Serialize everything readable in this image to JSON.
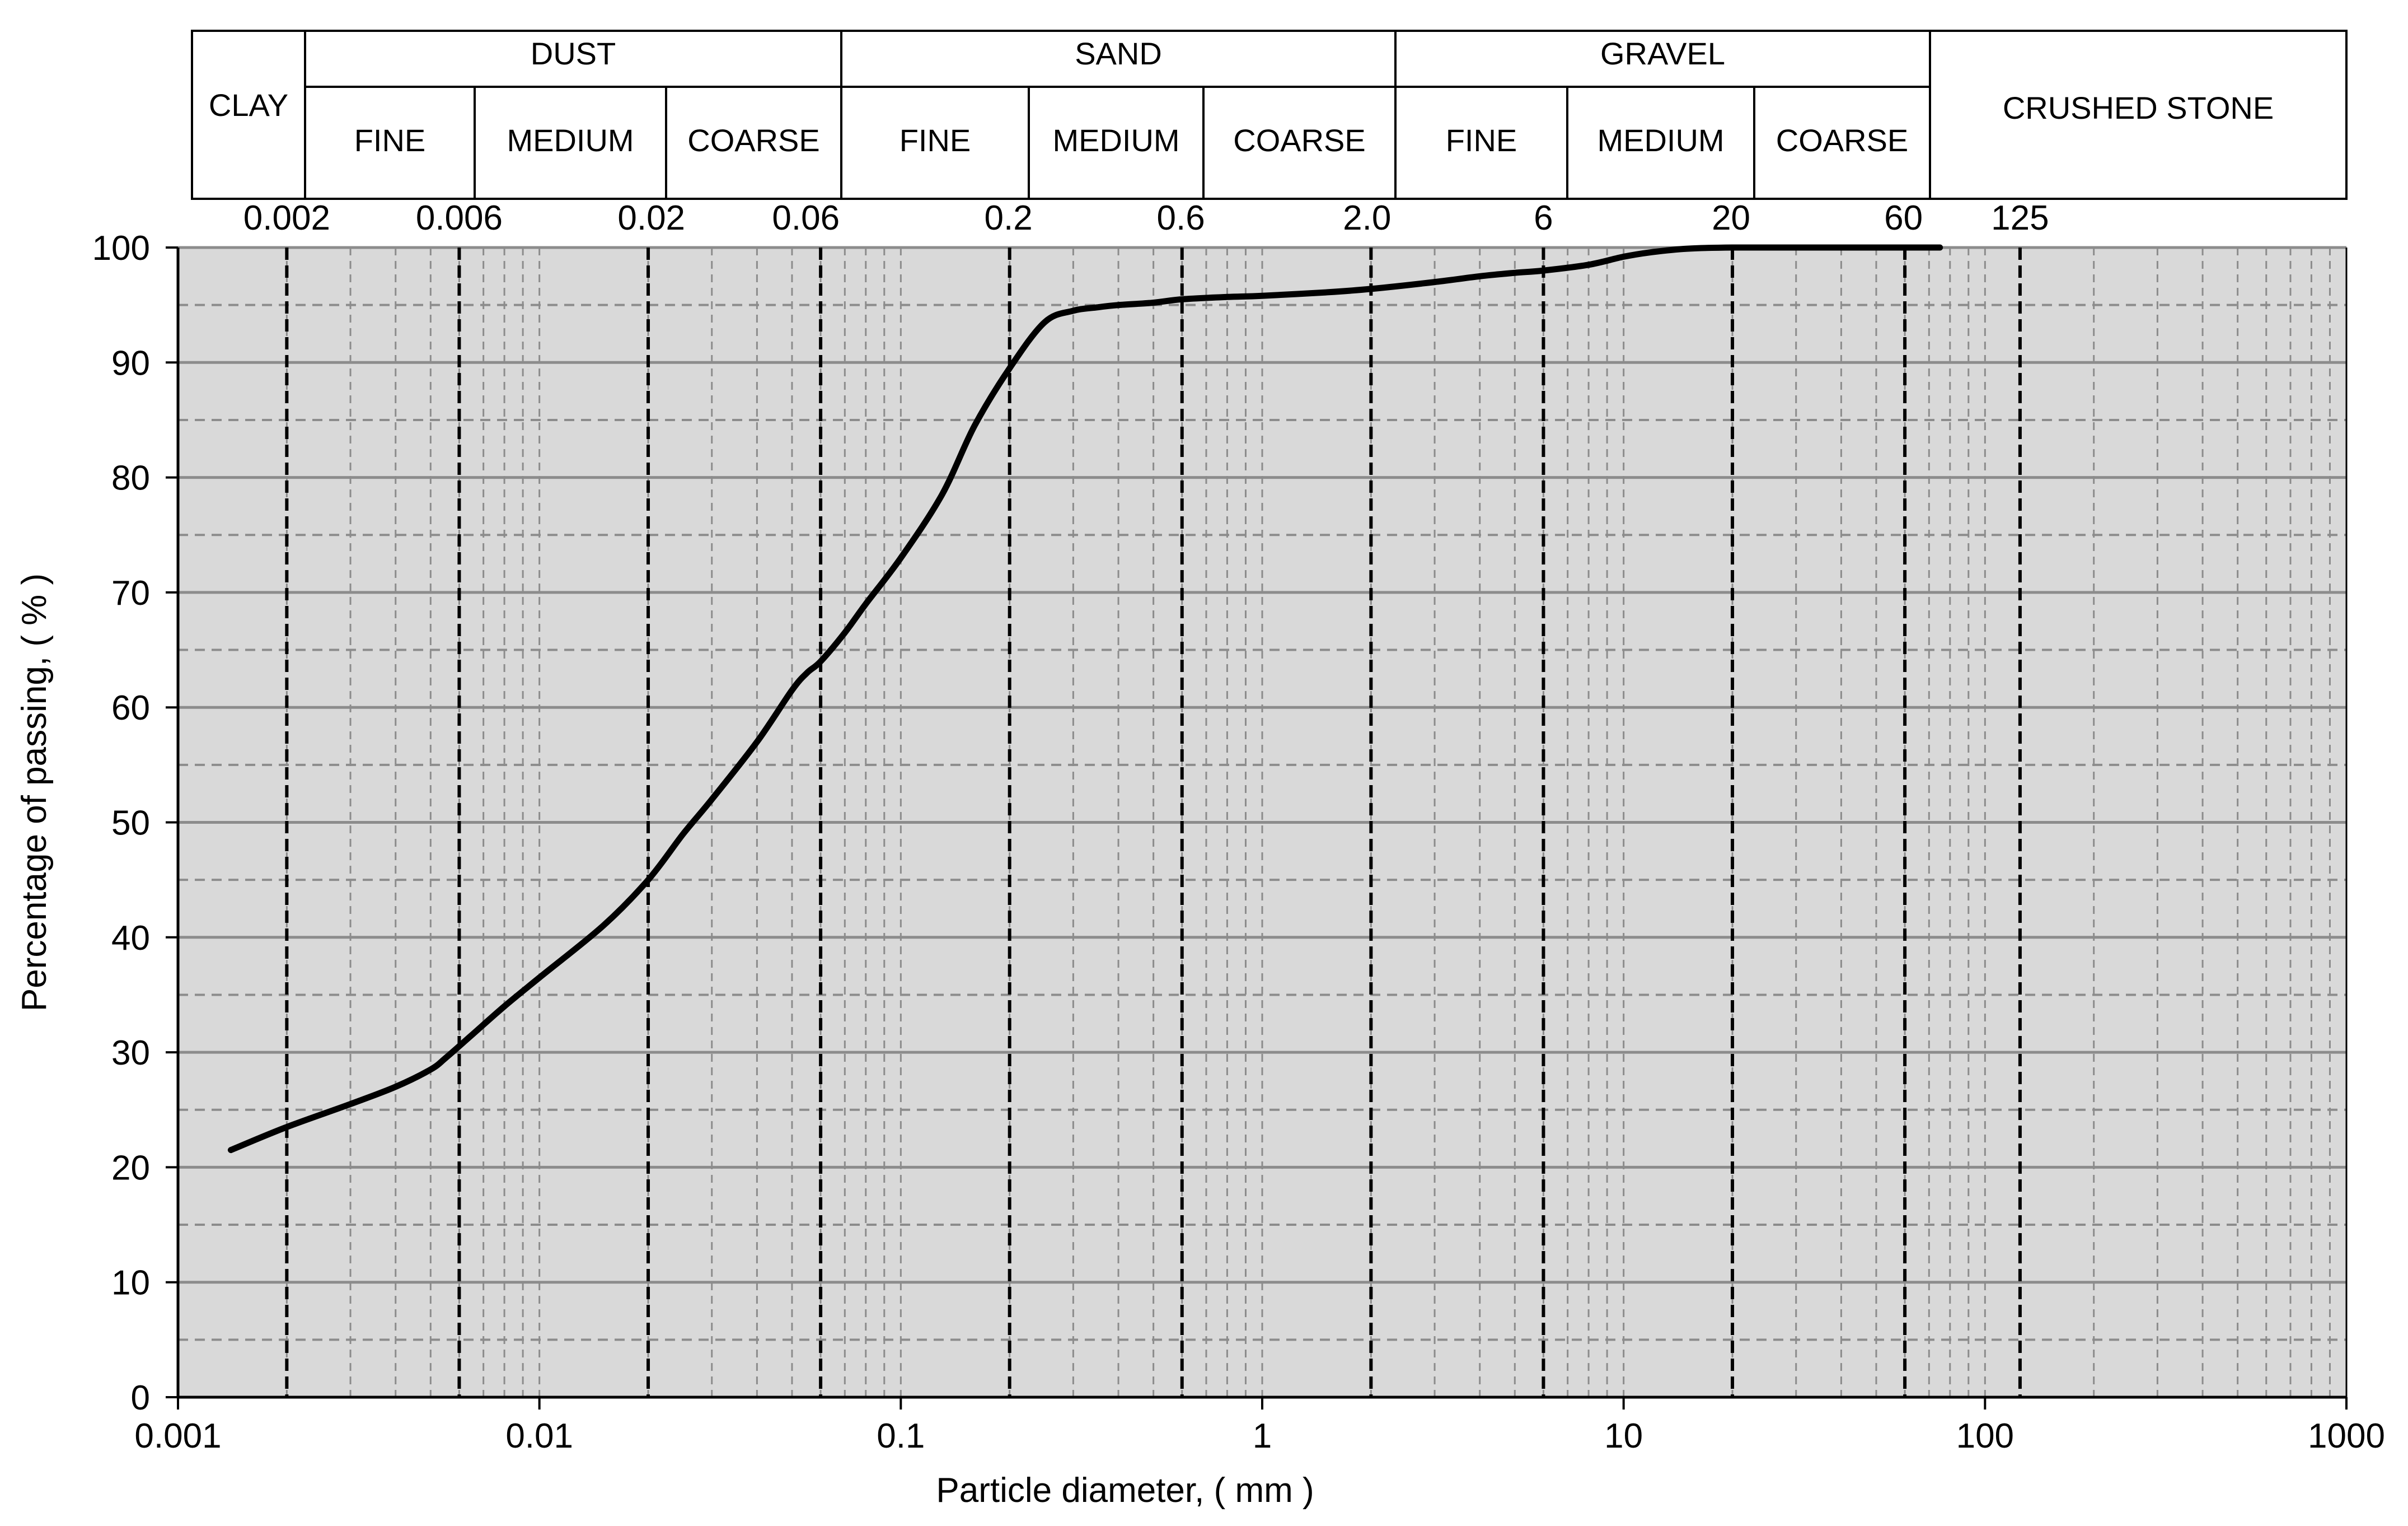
{
  "chart_data": {
    "type": "line",
    "xlabel": "Particle diameter,  ( mm  )",
    "ylabel": "Percentage  of passing, ( % )",
    "x_scale": "log",
    "xlim": [
      0.001,
      1000
    ],
    "ylim": [
      0,
      100
    ],
    "x_ticks": [
      {
        "value": 0.001,
        "label": "0.001"
      },
      {
        "value": 0.01,
        "label": "0.01"
      },
      {
        "value": 0.1,
        "label": "0.1"
      },
      {
        "value": 1,
        "label": "1"
      },
      {
        "value": 10,
        "label": "10"
      },
      {
        "value": 100,
        "label": "100"
      },
      {
        "value": 1000,
        "label": "1000"
      }
    ],
    "y_ticks": [
      {
        "value": 0,
        "label": "0"
      },
      {
        "value": 10,
        "label": "10"
      },
      {
        "value": 20,
        "label": "20"
      },
      {
        "value": 30,
        "label": "30"
      },
      {
        "value": 40,
        "label": "40"
      },
      {
        "value": 50,
        "label": "50"
      },
      {
        "value": 60,
        "label": "60"
      },
      {
        "value": 70,
        "label": "70"
      },
      {
        "value": 80,
        "label": "80"
      },
      {
        "value": 90,
        "label": "90"
      },
      {
        "value": 100,
        "label": "100"
      }
    ],
    "grid": {
      "major_y": true,
      "minor_y": true,
      "minor_x_log": true
    },
    "plot_background": "#d9d9d9",
    "line_color": "#000000",
    "boundaries": [
      {
        "value": 0.002,
        "label": "0.002"
      },
      {
        "value": 0.006,
        "label": "0.006"
      },
      {
        "value": 0.02,
        "label": "0.02"
      },
      {
        "value": 0.06,
        "label": "0.06"
      },
      {
        "value": 0.2,
        "label": "0.2"
      },
      {
        "value": 0.6,
        "label": "0.6"
      },
      {
        "value": 2.0,
        "label": "2.0"
      },
      {
        "value": 6,
        "label": "6"
      },
      {
        "value": 20,
        "label": "20"
      },
      {
        "value": 60,
        "label": "60"
      },
      {
        "value": 125,
        "label": "125"
      }
    ],
    "classification": {
      "clay": "CLAY",
      "groups": [
        {
          "name": "DUST",
          "subs": [
            "FINE",
            "MEDIUM",
            "COARSE"
          ]
        },
        {
          "name": "SAND",
          "subs": [
            "FINE",
            "MEDIUM",
            "COARSE"
          ]
        },
        {
          "name": "GRAVEL",
          "subs": [
            "FINE",
            "MEDIUM",
            "COARSE"
          ]
        }
      ],
      "crushed": "CRUSHED STONE"
    },
    "series": [
      {
        "x": [
          0.0014,
          0.002,
          0.003,
          0.004,
          0.005,
          0.0055,
          0.0065,
          0.008,
          0.01,
          0.015,
          0.02,
          0.025,
          0.03,
          0.04,
          0.05,
          0.055,
          0.06,
          0.07,
          0.08,
          0.1,
          0.13,
          0.16,
          0.2,
          0.25,
          0.3,
          0.35,
          0.4,
          0.5,
          0.6,
          0.8,
          1.0,
          1.5,
          2.0,
          3.0,
          4.0,
          5.0,
          6.0,
          8.0,
          10.0,
          12.0,
          15.0,
          20.0,
          30.0,
          50.0,
          75.0
        ],
        "y": [
          21.5,
          23.5,
          25.5,
          27,
          28.5,
          29.5,
          31.5,
          34,
          36.5,
          41,
          45,
          49,
          52,
          57,
          61.5,
          63,
          64,
          66.5,
          69,
          73,
          78.5,
          84.5,
          89.5,
          93.5,
          94.5,
          94.8,
          95,
          95.2,
          95.5,
          95.7,
          95.8,
          96.1,
          96.4,
          97,
          97.5,
          97.8,
          98,
          98.5,
          99.2,
          99.6,
          99.9,
          100,
          100,
          100,
          100
        ]
      }
    ]
  }
}
